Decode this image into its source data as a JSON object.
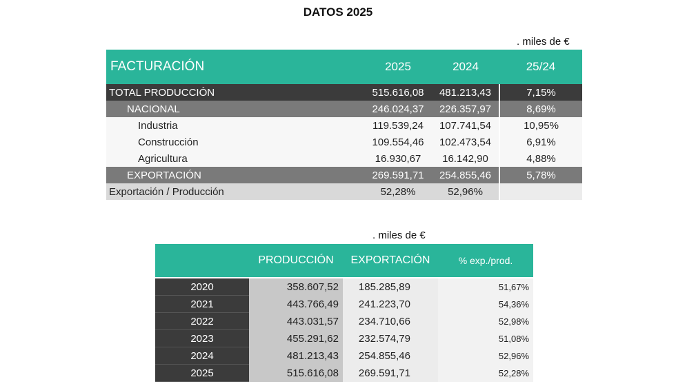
{
  "title": "DATOS 2025",
  "unit_label": ". miles de €",
  "facturacion": {
    "header": {
      "label": "FACTURACIÓN",
      "col1": "2025",
      "col2": "2024",
      "col3": "25/24"
    },
    "rows": [
      {
        "label": "TOTAL PRODUCCIÓN",
        "v2025": "515.616,08",
        "v2024": "481.213,43",
        "var": "7,15%"
      },
      {
        "label": "NACIONAL",
        "v2025": "246.024,37",
        "v2024": "226.357,97",
        "var": "8,69%"
      },
      {
        "label": "Industria",
        "v2025": "119.539,24",
        "v2024": "107.741,54",
        "var": "10,95%"
      },
      {
        "label": "Construcción",
        "v2025": "109.554,46",
        "v2024": "102.473,54",
        "var": "6,91%"
      },
      {
        "label": "Agricultura",
        "v2025": "16.930,67",
        "v2024": "16.142,90",
        "var": "4,88%"
      },
      {
        "label": "EXPORTACIÓN",
        "v2025": "269.591,71",
        "v2024": "254.855,46",
        "var": "5,78%"
      },
      {
        "label": "Exportación / Producción",
        "v2025": "52,28%",
        "v2024": "52,96%"
      }
    ]
  },
  "historico": {
    "header": {
      "col1": "PRODUCCIÓN",
      "col2": "EXPORTACIÓN",
      "col3": "% exp./prod."
    },
    "rows": [
      {
        "year": "2020",
        "produccion": "358.607,52",
        "exportacion": "185.285,89",
        "pct": "51,67%"
      },
      {
        "year": "2021",
        "produccion": "443.766,49",
        "exportacion": "241.223,70",
        "pct": "54,36%"
      },
      {
        "year": "2022",
        "produccion": "443.031,57",
        "exportacion": "234.710,66",
        "pct": "52,98%"
      },
      {
        "year": "2023",
        "produccion": "455.291,62",
        "exportacion": "232.574,79",
        "pct": "51,08%"
      },
      {
        "year": "2024",
        "produccion": "481.213,43",
        "exportacion": "254.855,46",
        "pct": "52,96%"
      },
      {
        "year": "2025",
        "produccion": "515.616,08",
        "exportacion": "269.591,71",
        "pct": "52,28%"
      }
    ]
  }
}
